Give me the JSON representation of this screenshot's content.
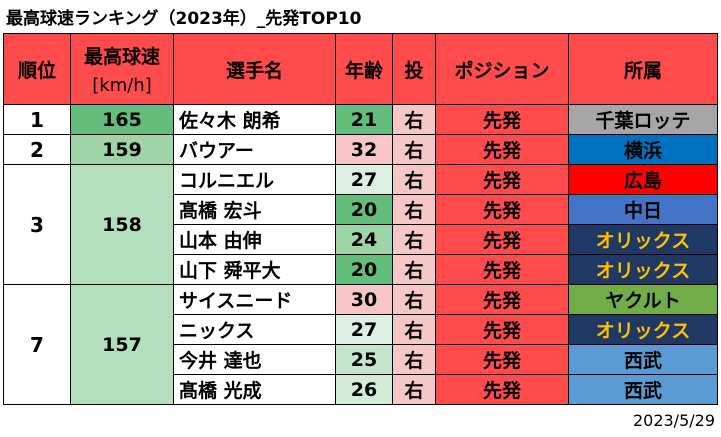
{
  "title": "最高球速ランキング（2023年）_先発TOP10",
  "date": "2023/5/29",
  "headers": {
    "rank": "順位",
    "speed": "最高球速",
    "speed_unit": "[km/h]",
    "player": "選手名",
    "age": "年齢",
    "throws": "投",
    "position": "ポジション",
    "team": "所属"
  },
  "colors": {
    "header_red": "#ff4b4b",
    "speed_dark_green": "#63be7b",
    "speed_mid_green": "#9fd5a6",
    "speed_light_green": "#b4dfbc",
    "age_green": "#63be7b",
    "age_light": "#dcefe2",
    "age_pink": "#f8c6c6",
    "hand_pink": "#f6c7c7",
    "lotte_gray": "#a6a6a6",
    "dena_blue": "#0070c0",
    "hiroshima_red": "#ff0000",
    "chunichi_blue": "#4472c4",
    "orix_navy": "#203864",
    "orix_gold": "#ffc000",
    "yakult_green": "#70ad47",
    "seibu_blue": "#5b9bd5"
  },
  "groups": [
    {
      "rank": "1",
      "speed": "165",
      "speed_bg": "#63be7b",
      "players": [
        {
          "name": "佐々木 朗希",
          "age": "21",
          "age_bg": "#63be7b",
          "hand": "右",
          "position": "先発",
          "team": "千葉ロッテ",
          "team_bg": "#a6a6a6",
          "team_fg": "#000000"
        }
      ]
    },
    {
      "rank": "2",
      "speed": "159",
      "speed_bg": "#9fd5a6",
      "players": [
        {
          "name": "バウアー",
          "age": "32",
          "age_bg": "#f8c6c6",
          "hand": "右",
          "position": "先発",
          "team": "横浜",
          "team_bg": "#0070c0",
          "team_fg": "#000000"
        }
      ]
    },
    {
      "rank": "3",
      "speed": "158",
      "speed_bg": "#b4dfbc",
      "players": [
        {
          "name": "コルニエル",
          "age": "27",
          "age_bg": "#dcefe2",
          "hand": "右",
          "position": "先発",
          "team": "広島",
          "team_bg": "#ff0000",
          "team_fg": "#000000"
        },
        {
          "name": "髙橋 宏斗",
          "age": "20",
          "age_bg": "#63be7b",
          "hand": "右",
          "position": "先発",
          "team": "中日",
          "team_bg": "#4472c4",
          "team_fg": "#000000"
        },
        {
          "name": "山本 由伸",
          "age": "24",
          "age_bg": "#9fd5a6",
          "hand": "右",
          "position": "先発",
          "team": "オリックス",
          "team_bg": "#203864",
          "team_fg": "#ffc000"
        },
        {
          "name": "山下 舜平大",
          "age": "20",
          "age_bg": "#63be7b",
          "hand": "右",
          "position": "先発",
          "team": "オリックス",
          "team_bg": "#203864",
          "team_fg": "#ffc000"
        }
      ]
    },
    {
      "rank": "7",
      "speed": "157",
      "speed_bg": "#b4dfbc",
      "players": [
        {
          "name": "サイスニード",
          "age": "30",
          "age_bg": "#f8c6c6",
          "hand": "右",
          "position": "先発",
          "team": "ヤクルト",
          "team_bg": "#70ad47",
          "team_fg": "#000000"
        },
        {
          "name": "ニックス",
          "age": "27",
          "age_bg": "#dcefe2",
          "hand": "右",
          "position": "先発",
          "team": "オリックス",
          "team_bg": "#203864",
          "team_fg": "#ffc000"
        },
        {
          "name": "今井 達也",
          "age": "25",
          "age_bg": "#c4e6cc",
          "hand": "右",
          "position": "先発",
          "team": "西武",
          "team_bg": "#5b9bd5",
          "team_fg": "#000000"
        },
        {
          "name": "髙橋 光成",
          "age": "26",
          "age_bg": "#d2ecd8",
          "hand": "右",
          "position": "先発",
          "team": "西武",
          "team_bg": "#5b9bd5",
          "team_fg": "#000000"
        }
      ]
    }
  ]
}
